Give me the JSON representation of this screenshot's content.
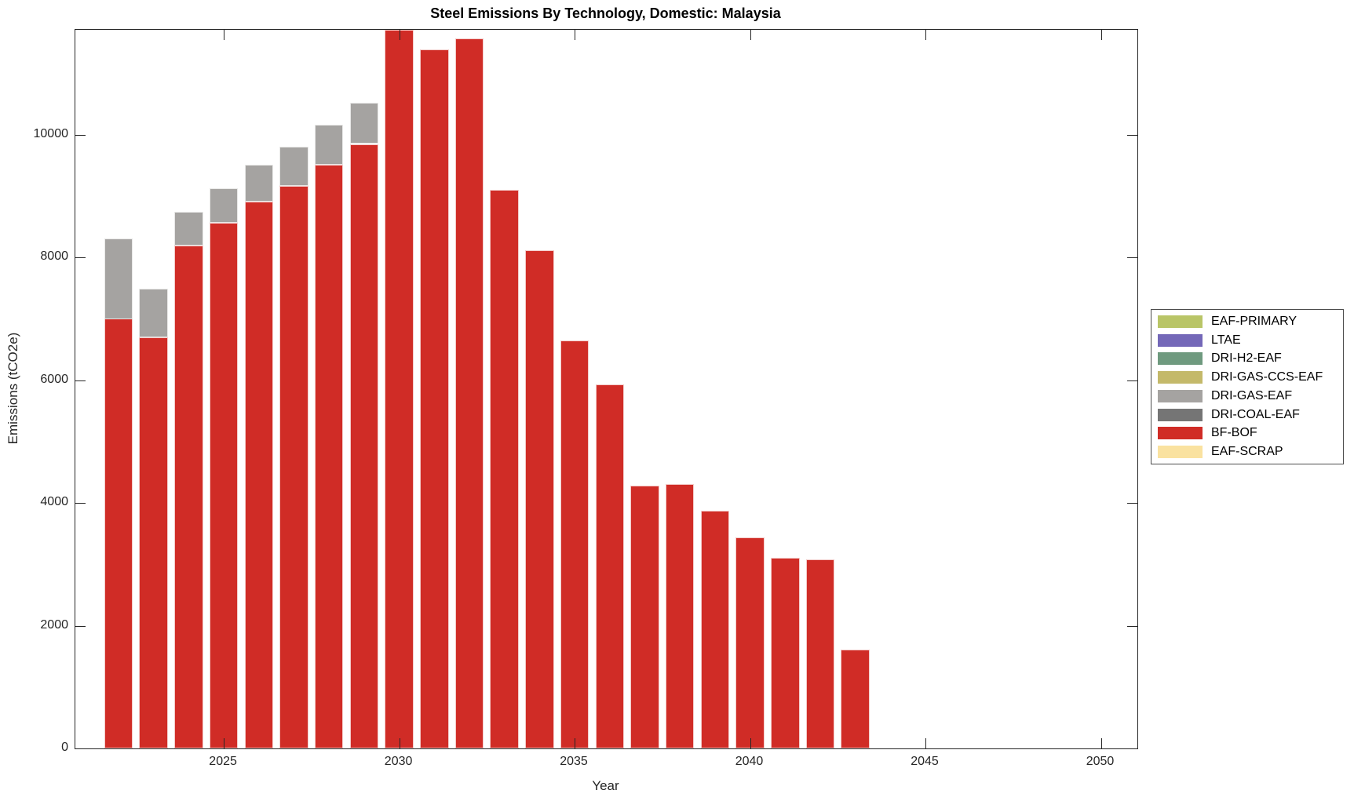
{
  "chart_data": {
    "type": "bar",
    "stacked": true,
    "title": "Steel Emissions By Technology, Domestic: Malaysia",
    "xlabel": "Year",
    "ylabel": "Emissions (tCO2e)",
    "grid": false,
    "legend_position": "right-outside",
    "xlim": [
      2020.77,
      2051.04
    ],
    "ylim": [
      0,
      11710
    ],
    "xticks": [
      2025,
      2030,
      2035,
      2040,
      2045,
      2050
    ],
    "yticks": [
      0,
      2000,
      4000,
      6000,
      8000,
      10000
    ],
    "categories": [
      2022,
      2023,
      2024,
      2025,
      2026,
      2027,
      2028,
      2029,
      2030,
      2031,
      2032,
      2033,
      2034,
      2035,
      2036,
      2037,
      2038,
      2039,
      2040,
      2041,
      2042,
      2043
    ],
    "series": [
      {
        "name": "BF-BOF",
        "color": "#d02c26",
        "values": [
          7000,
          6700,
          8200,
          8560,
          8910,
          9170,
          9510,
          9850,
          11710,
          11390,
          11570,
          9100,
          8120,
          6650,
          5930,
          4280,
          4310,
          3880,
          3440,
          3110,
          3080,
          1610
        ]
      },
      {
        "name": "DRI-GAS-EAF",
        "color": "#a5a3a1",
        "values": [
          1310,
          790,
          550,
          570,
          600,
          630,
          660,
          670,
          0,
          0,
          0,
          0,
          0,
          0,
          0,
          0,
          0,
          0,
          0,
          0,
          0,
          0
        ]
      }
    ]
  },
  "legend": {
    "items": [
      {
        "label": "EAF-PRIMARY",
        "color": "#b9c567"
      },
      {
        "label": "LTAE",
        "color": "#7468b8"
      },
      {
        "label": "DRI-H2-EAF",
        "color": "#6f9a7f"
      },
      {
        "label": "DRI-GAS-CCS-EAF",
        "color": "#c4b96a"
      },
      {
        "label": "DRI-GAS-EAF",
        "color": "#a5a3a1"
      },
      {
        "label": "DRI-COAL-EAF",
        "color": "#757575"
      },
      {
        "label": "BF-BOF",
        "color": "#d02c26"
      },
      {
        "label": "EAF-SCRAP",
        "color": "#fae2a0"
      }
    ]
  }
}
